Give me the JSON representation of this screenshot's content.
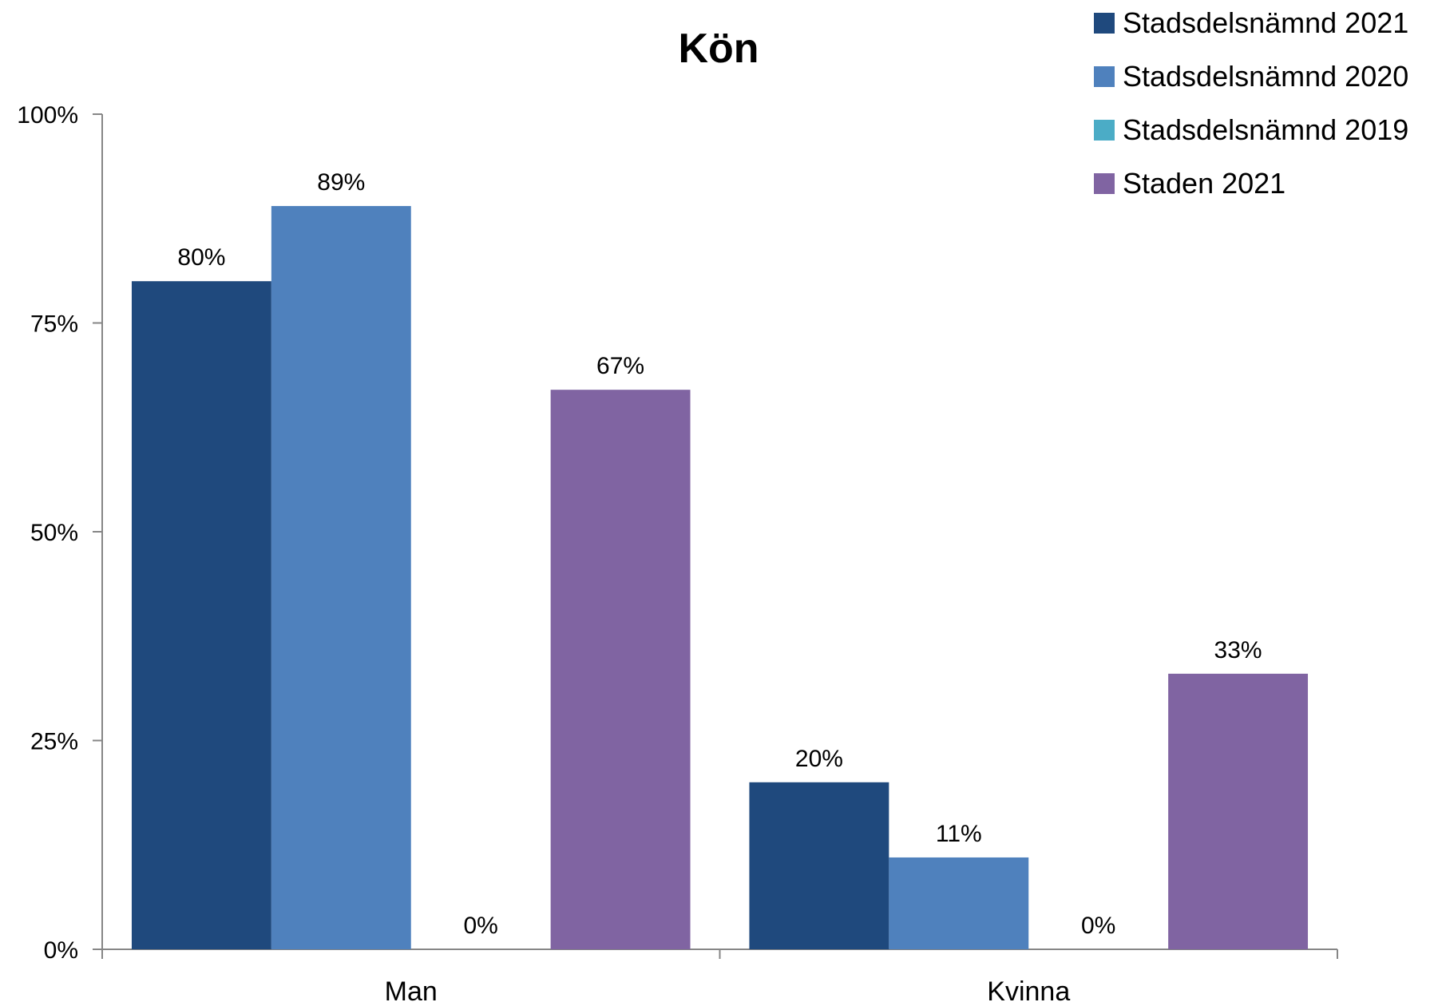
{
  "chart_data": {
    "type": "bar",
    "title": "Kön",
    "categories": [
      "Man",
      "Kvinna"
    ],
    "series": [
      {
        "name": "Stadsdelsnämnd 2021",
        "color": "#1f497d",
        "values": [
          80,
          20
        ],
        "labels": [
          "80%",
          "20%"
        ]
      },
      {
        "name": "Stadsdelsnämnd 2020",
        "color": "#4f81bd",
        "values": [
          89,
          11
        ],
        "labels": [
          "89%",
          "11%"
        ]
      },
      {
        "name": "Stadsdelsnämnd 2019",
        "color": "#4bacc6",
        "values": [
          0,
          0
        ],
        "labels": [
          "0%",
          "0%"
        ]
      },
      {
        "name": "Staden 2021",
        "color": "#8064a2",
        "values": [
          67,
          33
        ],
        "labels": [
          "67%",
          "33%"
        ]
      }
    ],
    "ylim": [
      0,
      100
    ],
    "yticks": [
      "0%",
      "25%",
      "50%",
      "75%",
      "100%"
    ],
    "grid": false,
    "legend_position": "top-right"
  }
}
